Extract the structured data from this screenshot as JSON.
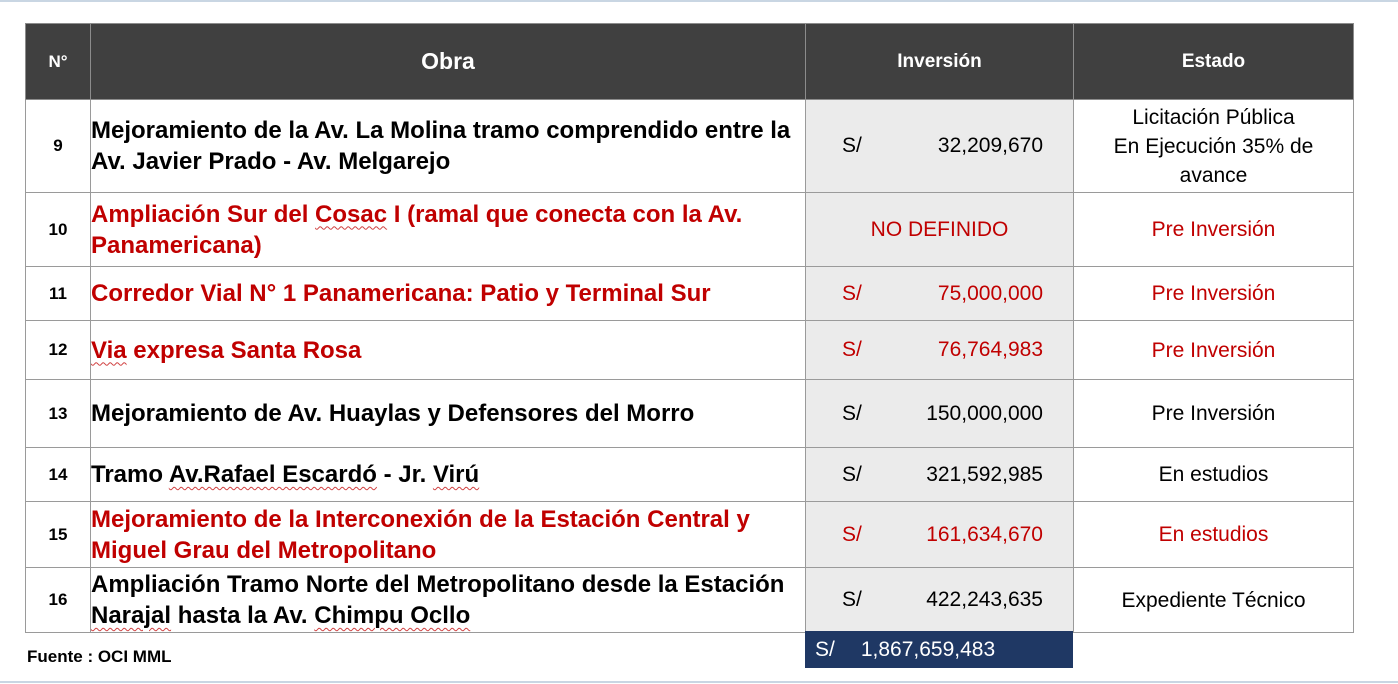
{
  "headers": {
    "num": "N°",
    "obra": "Obra",
    "inversion": "Inversión",
    "estado": "Estado"
  },
  "rows": [
    {
      "num": "9",
      "obra": "Mejoramiento de la Av. La Molina tramo comprendido entre la Av. Javier Prado - Av. Melgarejo",
      "currency": "S/",
      "amount": "32,209,670",
      "estado": [
        "Licitación Pública",
        "En Ejecución 35% de",
        "avance"
      ],
      "highlighted": false
    },
    {
      "num": "10",
      "obra_parts": [
        "Ampliación Sur del ",
        "Cosac",
        " I (ramal que conecta con la Av. Panamericana)"
      ],
      "inversion_text": "NO DEFINIDO",
      "estado": "Pre Inversión",
      "highlighted": true
    },
    {
      "num": "11",
      "obra": "Corredor Vial N° 1 Panamericana: Patio y Terminal Sur",
      "currency": "S/",
      "amount": "75,000,000",
      "estado": "Pre Inversión",
      "highlighted": true
    },
    {
      "num": "12",
      "obra_parts": [
        "Via",
        " expresa Santa Rosa"
      ],
      "currency": "S/",
      "amount": "76,764,983",
      "estado": "Pre Inversión",
      "highlighted": true
    },
    {
      "num": "13",
      "obra": "Mejoramiento de Av. Huaylas y Defensores del Morro",
      "currency": "S/",
      "amount": "150,000,000",
      "estado": "Pre Inversión",
      "highlighted": false
    },
    {
      "num": "14",
      "obra_parts": [
        "Tramo ",
        "Av.Rafael Escardó",
        " - Jr. ",
        "Virú"
      ],
      "currency": "S/",
      "amount": "321,592,985",
      "estado": "En estudios",
      "highlighted": false
    },
    {
      "num": "15",
      "obra": "Mejoramiento de la Interconexión de la Estación Central y Miguel Grau del Metropolitano",
      "currency": "S/",
      "amount": "161,634,670",
      "estado": "En estudios",
      "highlighted": true
    },
    {
      "num": "16",
      "obra_parts": [
        "Ampliación Tramo Norte del Metropolitano desde la Estación ",
        "Narajal",
        " hasta la Av. ",
        "Chimpu Ocllo"
      ],
      "currency": "S/",
      "amount": "422,243,635",
      "estado": "Expediente Técnico",
      "highlighted": false
    }
  ],
  "total": {
    "currency": "S/",
    "amount": "1,867,659,483"
  },
  "fuente": "Fuente : OCI MML",
  "colors": {
    "header_bg": "#404040",
    "highlight_red": "#c00000",
    "total_bg": "#1f3864",
    "investment_bg": "#ebebeb"
  }
}
